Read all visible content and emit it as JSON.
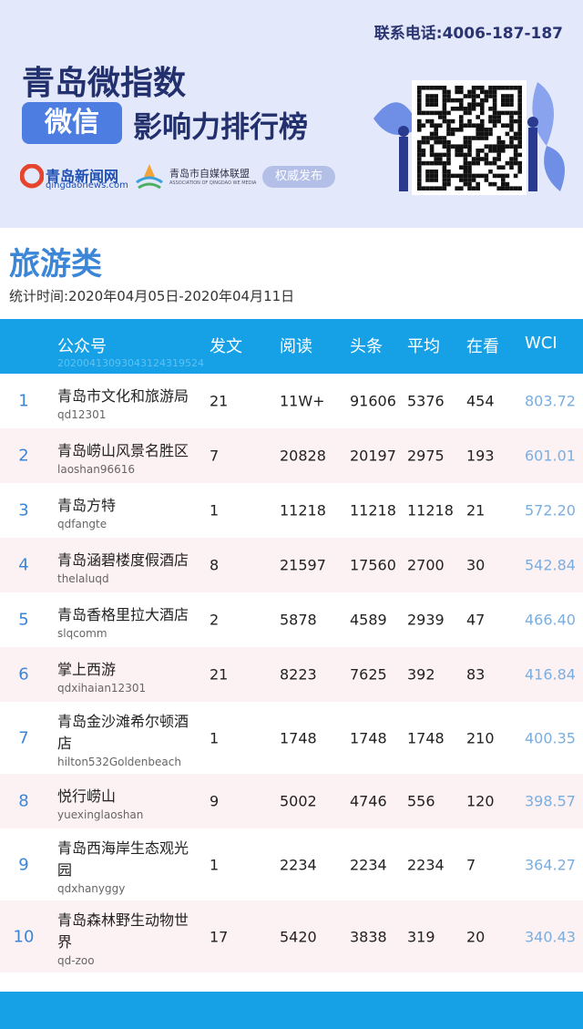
{
  "header": {
    "contact": "联系电话:4006-187-187",
    "title_line1": "青岛微指数",
    "wechat_badge": "微信",
    "title_line2": "影响力排行榜",
    "logo_name": "青岛新闻网",
    "logo_url": "qingdaonews.com",
    "alliance_name": "青岛市自媒体联盟",
    "alliance_en": "ASSOCIATION OF QINGDAO WE MEDIA",
    "badge": "权威发布"
  },
  "category": "旅游类",
  "period": "统计时间:2020年04月05日-2020年04月11日",
  "table": {
    "columns": [
      "公众号",
      "发文",
      "阅读",
      "头条",
      "平均",
      "在看",
      "WCI"
    ],
    "header_id": "20200413093043124319524",
    "rows": [
      {
        "rank": "1",
        "name": "青岛市文化和旅游局",
        "account": "qd12301",
        "posts": "21",
        "reads": "11W+",
        "headline": "91606",
        "average": "5376",
        "likes": "454",
        "wci": "803.72"
      },
      {
        "rank": "2",
        "name": "青岛崂山风景名胜区",
        "account": "laoshan96616",
        "posts": "7",
        "reads": "20828",
        "headline": "20197",
        "average": "2975",
        "likes": "193",
        "wci": "601.01"
      },
      {
        "rank": "3",
        "name": "青岛方特",
        "account": "qdfangte",
        "posts": "1",
        "reads": "11218",
        "headline": "11218",
        "average": "11218",
        "likes": "21",
        "wci": "572.20"
      },
      {
        "rank": "4",
        "name": "青岛涵碧楼度假酒店",
        "account": "thelaluqd",
        "posts": "8",
        "reads": "21597",
        "headline": "17560",
        "average": "2700",
        "likes": "30",
        "wci": "542.84"
      },
      {
        "rank": "5",
        "name": "青岛香格里拉大酒店",
        "account": "slqcomm",
        "posts": "2",
        "reads": "5878",
        "headline": "4589",
        "average": "2939",
        "likes": "47",
        "wci": "466.40"
      },
      {
        "rank": "6",
        "name": "掌上西游",
        "account": "qdxihaian12301",
        "posts": "21",
        "reads": "8223",
        "headline": "7625",
        "average": "392",
        "likes": "83",
        "wci": "416.84"
      },
      {
        "rank": "7",
        "name": "青岛金沙滩希尔顿酒店",
        "account": "hilton532Goldenbeach",
        "posts": "1",
        "reads": "1748",
        "headline": "1748",
        "average": "1748",
        "likes": "210",
        "wci": "400.35"
      },
      {
        "rank": "8",
        "name": "悦行崂山",
        "account": "yuexinglaoshan",
        "posts": "9",
        "reads": "5002",
        "headline": "4746",
        "average": "556",
        "likes": "120",
        "wci": "398.57"
      },
      {
        "rank": "9",
        "name": "青岛西海岸生态观光园",
        "account": "qdxhanyggy",
        "posts": "1",
        "reads": "2234",
        "headline": "2234",
        "average": "2234",
        "likes": "7",
        "wci": "364.27"
      },
      {
        "rank": "10",
        "name": "青岛森林野生动物世界",
        "account": "qd-zoo",
        "posts": "17",
        "reads": "5420",
        "headline": "3838",
        "average": "319",
        "likes": "20",
        "wci": "340.43"
      }
    ]
  }
}
